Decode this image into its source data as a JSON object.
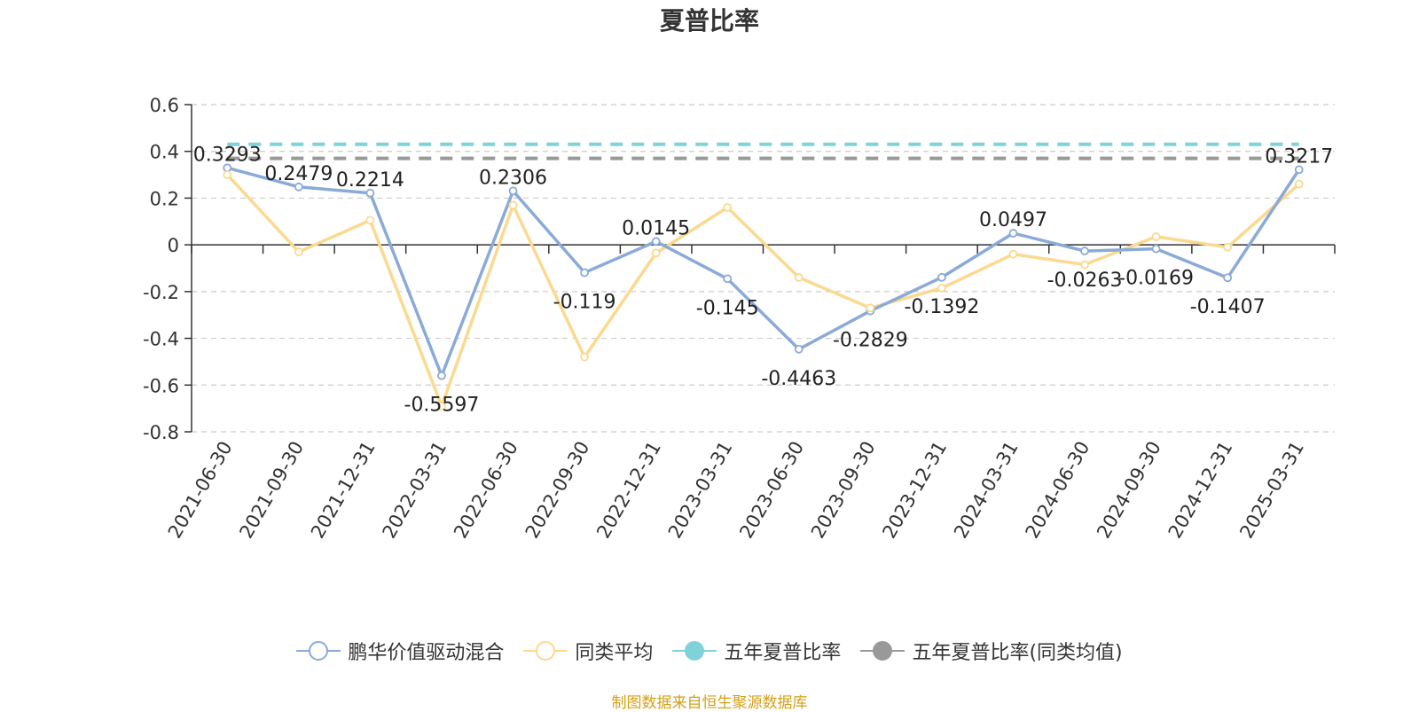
{
  "chart_data": {
    "type": "line",
    "title": "夏普比率",
    "categories": [
      "2021-06-30",
      "2021-09-30",
      "2021-12-31",
      "2022-03-31",
      "2022-06-30",
      "2022-09-30",
      "2022-12-31",
      "2023-03-31",
      "2023-06-30",
      "2023-09-30",
      "2023-12-31",
      "2024-03-31",
      "2024-06-30",
      "2024-09-30",
      "2024-12-31",
      "2025-03-31"
    ],
    "ylim": [
      -0.8,
      0.6
    ],
    "yticks": [
      "0.6",
      "0.4",
      "0.2",
      "0",
      "-0.2",
      "-0.4",
      "-0.6",
      "-0.8"
    ],
    "grid": true,
    "legend_position": "bottom",
    "series": [
      {
        "name": "鹏华价值驱动混合",
        "color": "#8aaad8",
        "show_labels": true,
        "values": [
          0.3293,
          0.2479,
          0.2214,
          -0.5597,
          0.2306,
          -0.119,
          0.0145,
          -0.145,
          -0.4463,
          -0.2829,
          -0.1392,
          0.0497,
          -0.0263,
          -0.0169,
          -0.1407,
          0.3217
        ],
        "labels": [
          "0.3293",
          "0.2479",
          "0.2214",
          "-0.5597",
          "0.2306",
          "-0.119",
          "0.0145",
          "-0.145",
          "-0.4463",
          "-0.2829",
          "-0.1392",
          "0.0497",
          "-0.0263",
          "-0.0169",
          "-0.1407",
          "0.3217"
        ]
      },
      {
        "name": "同类平均",
        "color": "#fbd98f",
        "show_labels": false,
        "values": [
          0.3,
          -0.03,
          0.105,
          -0.69,
          0.17,
          -0.48,
          -0.035,
          0.16,
          -0.14,
          -0.27,
          -0.185,
          -0.04,
          -0.085,
          0.035,
          -0.01,
          0.26
        ]
      },
      {
        "name": "五年夏普比率",
        "color": "#7fd3d8",
        "style": "dashed-constant",
        "value": 0.43
      },
      {
        "name": "五年夏普比率(同类均值)",
        "color": "#999999",
        "style": "dashed-constant",
        "value": 0.37
      }
    ]
  },
  "source_note": "制图数据来自恒生聚源数据库"
}
